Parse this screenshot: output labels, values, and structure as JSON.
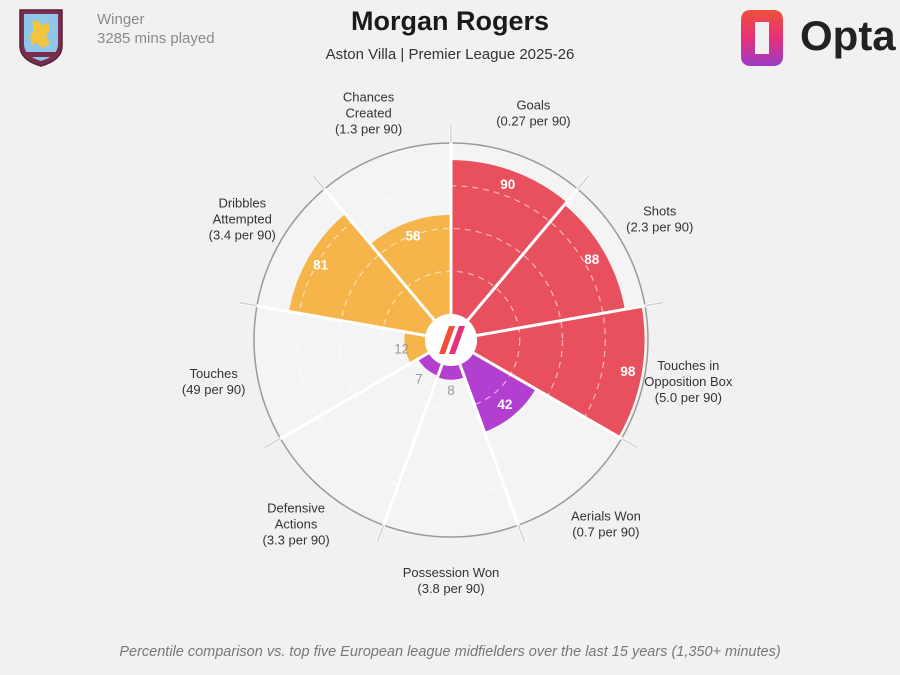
{
  "header": {
    "position": "Winger",
    "minutes": "3285 mins played",
    "player": "Morgan Rogers",
    "subtitle": "Aston Villa | Premier League 2025-26",
    "brand": "Opta"
  },
  "footer": {
    "note": "Percentile comparison vs. top five European league midfielders over the last 15 years (1,350+ minutes)"
  },
  "chart_data": {
    "type": "polar-bar",
    "rmax": 100,
    "grid": true,
    "categories": [
      {
        "name": "Goals",
        "value_label": "(0.27 per 90)",
        "percentile": 90,
        "color": "#e8505e"
      },
      {
        "name": "Shots",
        "value_label": "(2.3 per 90)",
        "percentile": 88,
        "color": "#e8505e"
      },
      {
        "name": "Touches in Opposition Box",
        "value_label": "(5.0 per 90)",
        "percentile": 98,
        "color": "#e8505e"
      },
      {
        "name": "Aerials Won",
        "value_label": "(0.7 per 90)",
        "percentile": 42,
        "color": "#b23fd0"
      },
      {
        "name": "Possession Won",
        "value_label": "(3.8 per 90)",
        "percentile": 8,
        "color": "#b23fd0"
      },
      {
        "name": "Defensive Actions",
        "value_label": "(3.3 per 90)",
        "percentile": 7,
        "color": "#b23fd0"
      },
      {
        "name": "Touches",
        "value_label": "(49 per 90)",
        "percentile": 12,
        "color": "#f5b54a"
      },
      {
        "name": "Dribbles Attempted",
        "value_label": "(3.4 per 90)",
        "percentile": 81,
        "color": "#f5b54a"
      },
      {
        "name": "Chances Created",
        "value_label": "(1.3 per 90)",
        "percentile": 58,
        "color": "#f5b54a"
      }
    ]
  },
  "colors": {
    "attack": "#e8505e",
    "defence": "#b23fd0",
    "possession": "#f5b54a",
    "grid": "#d6d6d6",
    "background": "#f1f1f1"
  }
}
